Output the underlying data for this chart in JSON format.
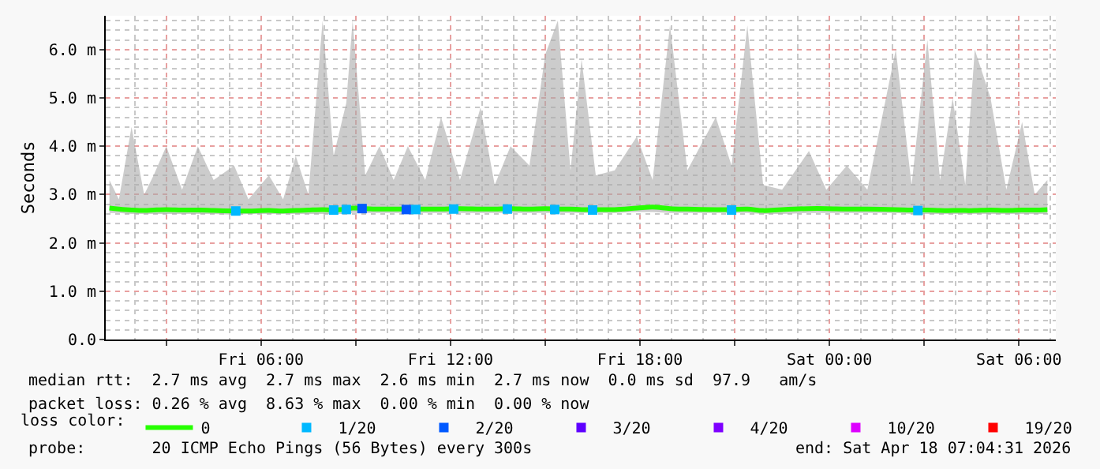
{
  "chart_data": {
    "type": "line",
    "ylabel": "Seconds",
    "legend_title": "loss color:",
    "xlim": [
      "2026-04-17T01:05",
      "2026-04-18T07:10"
    ],
    "xticks": [
      {
        "value": "2026-04-17T03:00",
        "label": null
      },
      {
        "value": "2026-04-17T06:00",
        "label": "Fri 06:00"
      },
      {
        "value": "2026-04-17T09:00",
        "label": null
      },
      {
        "value": "2026-04-17T12:00",
        "label": "Fri 12:00"
      },
      {
        "value": "2026-04-17T15:00",
        "label": null
      },
      {
        "value": "2026-04-17T18:00",
        "label": "Fri 18:00"
      },
      {
        "value": "2026-04-17T21:00",
        "label": null
      },
      {
        "value": "2026-04-18T00:00",
        "label": "Sat 00:00"
      },
      {
        "value": "2026-04-18T03:00",
        "label": null
      },
      {
        "value": "2026-04-18T06:00",
        "label": "Sat 06:00"
      }
    ],
    "ylim": [
      0,
      6.7
    ],
    "yticks": [
      {
        "value": 0,
        "label": "0.0"
      },
      {
        "value": 1,
        "label": "1.0 m"
      },
      {
        "value": 2,
        "label": "2.0 m"
      },
      {
        "value": 3,
        "label": "3.0 m"
      },
      {
        "value": 4,
        "label": "4.0 m"
      },
      {
        "value": 5,
        "label": "5.0 m"
      },
      {
        "value": 6,
        "label": "6.0 m"
      }
    ],
    "grid": true,
    "legend": "bottom",
    "line_style": "solid",
    "series": [
      {
        "name": "0",
        "color": "#26ff00",
        "x": [
          "2026-04-17T01:12",
          "2026-04-17T01:30",
          "2026-04-17T01:54",
          "2026-04-17T02:18",
          "2026-04-17T02:36",
          "2026-04-17T03:00",
          "2026-04-17T03:30",
          "2026-04-17T04:00",
          "2026-04-17T04:30",
          "2026-04-17T05:09",
          "2026-04-17T05:36",
          "2026-04-17T06:15",
          "2026-04-17T06:42",
          "2026-04-17T07:06",
          "2026-04-17T07:30",
          "2026-04-17T07:57",
          "2026-04-17T08:18",
          "2026-04-17T08:42",
          "2026-04-17T08:54",
          "2026-04-17T09:18",
          "2026-04-17T09:45",
          "2026-04-17T10:12",
          "2026-04-17T10:39",
          "2026-04-17T11:12",
          "2026-04-17T11:42",
          "2026-04-17T12:18",
          "2026-04-17T12:57",
          "2026-04-17T13:24",
          "2026-04-17T13:54",
          "2026-04-17T14:30",
          "2026-04-17T15:00",
          "2026-04-17T15:24",
          "2026-04-17T15:48",
          "2026-04-17T16:09",
          "2026-04-17T16:36",
          "2026-04-17T17:12",
          "2026-04-17T17:54",
          "2026-04-17T18:24",
          "2026-04-17T18:57",
          "2026-04-17T19:30",
          "2026-04-17T20:24",
          "2026-04-17T20:54",
          "2026-04-17T21:24",
          "2026-04-17T21:54",
          "2026-04-17T22:30",
          "2026-04-17T23:21",
          "2026-04-17T23:54",
          "2026-04-18T00:33",
          "2026-04-18T01:12",
          "2026-04-18T02:06",
          "2026-04-18T02:36",
          "2026-04-18T03:06",
          "2026-04-18T03:30",
          "2026-04-18T03:54",
          "2026-04-18T04:18",
          "2026-04-18T04:36",
          "2026-04-18T05:06",
          "2026-04-18T05:36",
          "2026-04-18T06:06",
          "2026-04-18T06:30",
          "2026-04-18T06:54"
        ],
        "values": [
          2.72,
          2.7,
          2.68,
          2.67,
          2.68,
          2.69,
          2.68,
          2.68,
          2.67,
          2.66,
          2.66,
          2.67,
          2.66,
          2.67,
          2.68,
          2.69,
          2.68,
          2.7,
          2.72,
          2.71,
          2.7,
          2.7,
          2.7,
          2.7,
          2.7,
          2.71,
          2.7,
          2.7,
          2.71,
          2.7,
          2.71,
          2.7,
          2.7,
          2.69,
          2.69,
          2.69,
          2.72,
          2.74,
          2.71,
          2.7,
          2.69,
          2.69,
          2.7,
          2.67,
          2.69,
          2.71,
          2.71,
          2.7,
          2.7,
          2.69,
          2.68,
          2.68,
          2.67,
          2.67,
          2.67,
          2.67,
          2.68,
          2.67,
          2.68,
          2.68,
          2.69
        ],
        "lower": [
          2.62,
          2.62,
          2.6,
          2.6,
          2.6,
          2.6,
          2.6,
          2.6,
          2.6,
          2.58,
          2.6,
          2.6,
          2.6,
          2.6,
          2.6,
          2.6,
          2.6,
          2.6,
          2.62,
          2.62,
          2.62,
          2.62,
          2.62,
          2.62,
          2.62,
          2.62,
          2.62,
          2.62,
          2.62,
          2.62,
          2.62,
          2.62,
          2.62,
          2.62,
          2.62,
          2.62,
          2.64,
          2.64,
          2.62,
          2.62,
          2.62,
          2.62,
          2.62,
          2.6,
          2.6,
          2.62,
          2.62,
          2.62,
          2.62,
          2.62,
          2.6,
          2.6,
          2.6,
          2.6,
          2.6,
          2.6,
          2.6,
          2.6,
          2.6,
          2.6,
          2.6
        ],
        "upper": [
          3.3,
          2.9,
          4.4,
          3.0,
          3.4,
          4.0,
          3.1,
          4.0,
          3.3,
          3.6,
          2.9,
          3.4,
          2.9,
          3.8,
          3.0,
          6.6,
          3.8,
          4.9,
          6.6,
          3.4,
          4.0,
          3.3,
          4.0,
          3.3,
          4.6,
          3.3,
          4.8,
          3.2,
          4.0,
          3.6,
          5.9,
          6.6,
          3.5,
          5.8,
          3.4,
          3.5,
          4.2,
          3.3,
          6.5,
          3.5,
          4.6,
          3.6,
          6.5,
          3.2,
          3.1,
          3.9,
          3.1,
          3.6,
          3.1,
          6.0,
          3.2,
          6.2,
          3.3,
          5.0,
          3.2,
          6.0,
          5.0,
          3.1,
          4.5,
          3.0,
          3.3
        ]
      },
      {
        "name": "1/20",
        "type": "scatter",
        "marker": "square",
        "color": "#00b8ff",
        "x": [
          "2026-04-17T05:12",
          "2026-04-17T08:18",
          "2026-04-17T08:42",
          "2026-04-17T10:54",
          "2026-04-17T12:06",
          "2026-04-17T13:48",
          "2026-04-17T15:18",
          "2026-04-17T16:30",
          "2026-04-17T20:54",
          "2026-04-18T02:48"
        ],
        "values": [
          2.66,
          2.68,
          2.69,
          2.69,
          2.7,
          2.7,
          2.69,
          2.68,
          2.68,
          2.67
        ]
      },
      {
        "name": "2/20",
        "type": "scatter",
        "marker": "square",
        "color": "#0059ff",
        "x": [
          "2026-04-17T09:12",
          "2026-04-17T10:36"
        ],
        "values": [
          2.71,
          2.69
        ]
      },
      {
        "name": "3/20",
        "type": "scatter",
        "marker": "square",
        "color": "#5e00ff"
      },
      {
        "name": "4/20",
        "type": "scatter",
        "marker": "square",
        "color": "#7e00ff"
      },
      {
        "name": "10/20",
        "type": "scatter",
        "marker": "square",
        "color": "#dd00ff"
      },
      {
        "name": "19/20",
        "type": "scatter",
        "marker": "square",
        "color": "#ff0000"
      }
    ],
    "annotations": [
      "median rtt:  2.7 ms avg  2.7 ms max  2.6 ms min  2.7 ms now  0.0 ms sd  97.9   am/s",
      "packet loss: 0.26 % avg  8.63 % max  0.00 % min  0.00 % now",
      "probe:       20 ICMP Echo Pings (56 Bytes) every 300s",
      "end: Sat Apr 18 07:04:31 2026"
    ]
  }
}
